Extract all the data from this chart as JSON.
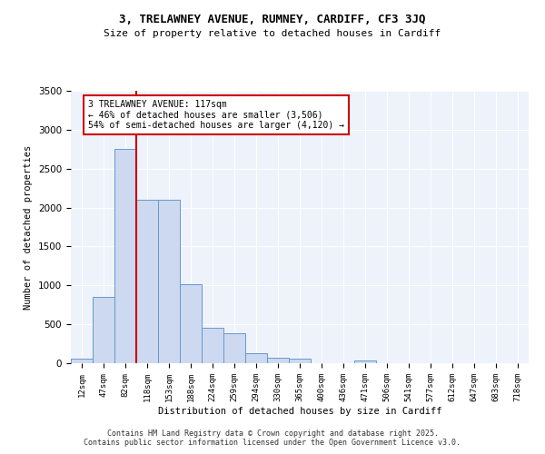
{
  "title1": "3, TRELAWNEY AVENUE, RUMNEY, CARDIFF, CF3 3JQ",
  "title2": "Size of property relative to detached houses in Cardiff",
  "xlabel": "Distribution of detached houses by size in Cardiff",
  "ylabel": "Number of detached properties",
  "bar_labels": [
    "12sqm",
    "47sqm",
    "82sqm",
    "118sqm",
    "153sqm",
    "188sqm",
    "224sqm",
    "259sqm",
    "294sqm",
    "330sqm",
    "365sqm",
    "400sqm",
    "436sqm",
    "471sqm",
    "506sqm",
    "541sqm",
    "577sqm",
    "612sqm",
    "647sqm",
    "683sqm",
    "718sqm"
  ],
  "bar_heights": [
    55,
    850,
    2750,
    2100,
    2100,
    1020,
    450,
    380,
    130,
    65,
    60,
    0,
    0,
    40,
    0,
    0,
    0,
    0,
    0,
    0,
    0
  ],
  "bar_color": "#ccd9f0",
  "bar_edge_color": "#6699cc",
  "red_line_index": 3,
  "annotation_text": "3 TRELAWNEY AVENUE: 117sqm\n← 46% of detached houses are smaller (3,506)\n54% of semi-detached houses are larger (4,120) →",
  "annotation_color": "#cc0000",
  "ylim": [
    0,
    3500
  ],
  "yticks": [
    0,
    500,
    1000,
    1500,
    2000,
    2500,
    3000,
    3500
  ],
  "background_color": "#eef2fb",
  "grid_color": "#ffffff",
  "footer1": "Contains HM Land Registry data © Crown copyright and database right 2025.",
  "footer2": "Contains public sector information licensed under the Open Government Licence v3.0."
}
